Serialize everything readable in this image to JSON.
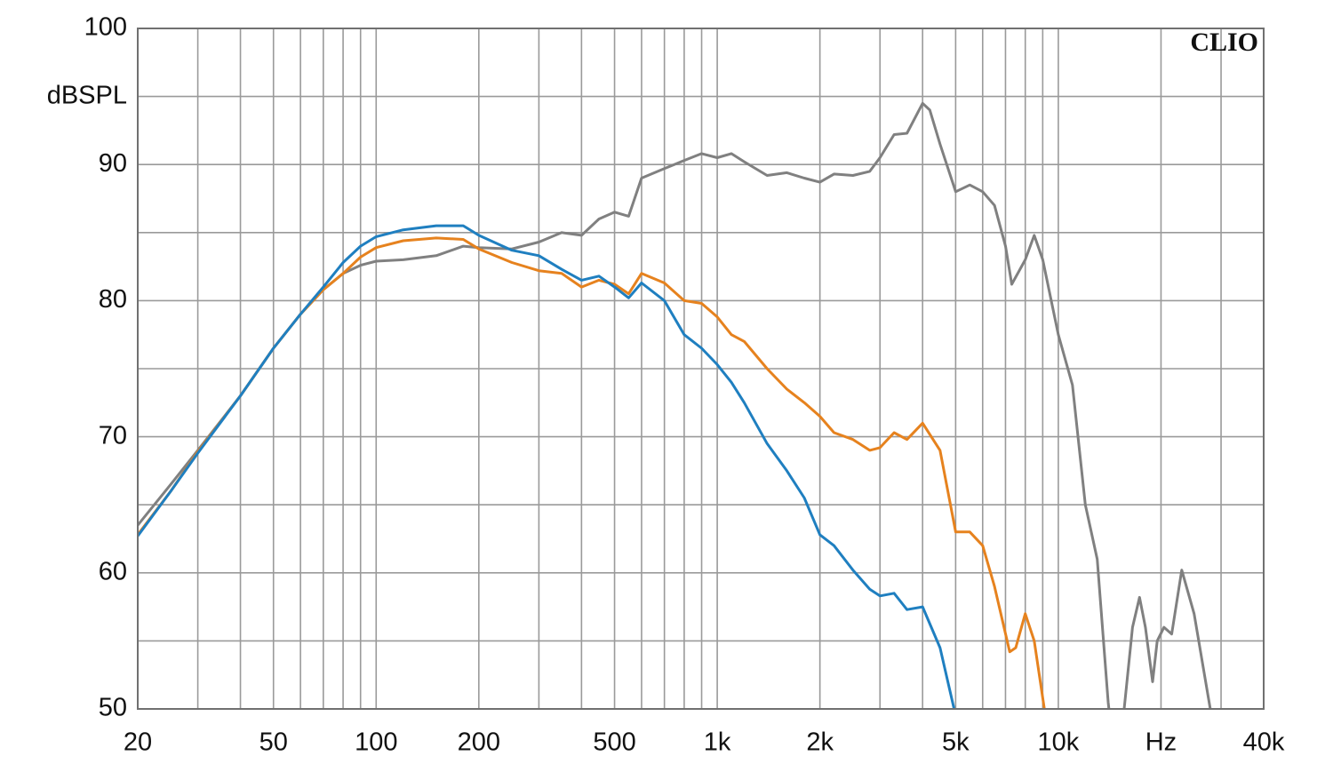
{
  "chart_data": {
    "type": "line",
    "xscale": "log",
    "grid": true,
    "xlabel_watermark": "CLIO",
    "ylabel": "dBSPL",
    "xlim": [
      20,
      40000
    ],
    "ylim": [
      50,
      100
    ],
    "xticks": [
      20,
      50,
      100,
      200,
      500,
      {
        "value": 1000,
        "label": "1k"
      },
      {
        "value": 2000,
        "label": "2k"
      },
      {
        "value": 5000,
        "label": "5k"
      },
      {
        "value": 10000,
        "label": "10k"
      },
      {
        "value": 20000,
        "label": "Hz"
      },
      {
        "value": 40000,
        "label": "40k"
      }
    ],
    "xminorticks": [
      30,
      40,
      60,
      70,
      80,
      90,
      300,
      400,
      600,
      700,
      800,
      900,
      3000,
      4000,
      6000,
      7000,
      8000,
      9000,
      30000
    ],
    "yticks": [
      50,
      60,
      70,
      80,
      90,
      100
    ],
    "yminorticks": [
      55,
      65,
      75,
      85,
      95
    ],
    "series": [
      {
        "color": "#808080",
        "x": [
          20,
          25,
          30,
          40,
          50,
          60,
          70,
          80,
          90,
          100,
          120,
          150,
          180,
          200,
          250,
          300,
          350,
          400,
          450,
          500,
          550,
          600,
          700,
          800,
          900,
          1000,
          1100,
          1200,
          1400,
          1600,
          1800,
          2000,
          2200,
          2500,
          2800,
          3000,
          3300,
          3600,
          4000,
          4200,
          4500,
          5000,
          5500,
          6000,
          6500,
          7000,
          7300,
          8000,
          8500,
          9000,
          10000,
          11000,
          12000,
          13000,
          14000,
          14500,
          15000,
          15600,
          16500,
          17300,
          18000,
          18900,
          19500,
          20400,
          21500,
          23000,
          25000,
          27900,
          30000
        ],
        "values": [
          63.5,
          66.5,
          69,
          73,
          76.5,
          79,
          80.8,
          82,
          82.6,
          82.9,
          83,
          83.3,
          84,
          83.9,
          83.8,
          84.3,
          85,
          84.8,
          86,
          86.5,
          86.2,
          89,
          89.7,
          90.3,
          90.8,
          90.5,
          90.8,
          90.2,
          89.2,
          89.4,
          89,
          88.7,
          89.3,
          89.2,
          89.5,
          90.5,
          92.2,
          92.3,
          94.5,
          94,
          91.5,
          88,
          88.5,
          88,
          87,
          84,
          81.2,
          83,
          84.8,
          83,
          77.5,
          73.8,
          65,
          61,
          50.5,
          47,
          47,
          50,
          56,
          58.2,
          56,
          52,
          55,
          56,
          55.5,
          60.2,
          57,
          50,
          48
        ]
      },
      {
        "color": "#e6821e",
        "x": [
          20,
          25,
          30,
          40,
          50,
          60,
          70,
          80,
          90,
          100,
          120,
          150,
          180,
          200,
          250,
          300,
          350,
          400,
          450,
          500,
          550,
          600,
          700,
          800,
          900,
          1000,
          1100,
          1200,
          1400,
          1600,
          1800,
          2000,
          2200,
          2500,
          2800,
          3000,
          3300,
          3600,
          4000,
          4500,
          5000,
          5500,
          6000,
          6500,
          7200,
          7500,
          8000,
          8500,
          9100,
          9400
        ],
        "values": [
          62.8,
          66,
          68.9,
          73,
          76.5,
          79,
          80.8,
          82,
          83.2,
          83.9,
          84.4,
          84.6,
          84.5,
          83.8,
          82.8,
          82.2,
          82,
          81,
          81.5,
          81.2,
          80.5,
          82,
          81.3,
          80,
          79.8,
          78.8,
          77.5,
          77,
          75,
          73.5,
          72.5,
          71.5,
          70.3,
          69.8,
          69,
          69.2,
          70.3,
          69.8,
          71,
          69,
          63,
          63,
          62,
          59,
          54.2,
          54.5,
          57,
          55,
          50,
          48
        ]
      },
      {
        "color": "#1f7fc0",
        "x": [
          20,
          25,
          30,
          40,
          50,
          60,
          70,
          80,
          90,
          100,
          120,
          150,
          180,
          200,
          250,
          300,
          350,
          400,
          450,
          500,
          550,
          600,
          700,
          800,
          900,
          1000,
          1100,
          1200,
          1400,
          1600,
          1800,
          2000,
          2200,
          2500,
          2800,
          3000,
          3300,
          3600,
          4000,
          4500,
          5000
        ],
        "values": [
          62.7,
          66,
          68.8,
          73,
          76.5,
          79,
          81,
          82.8,
          84,
          84.7,
          85.2,
          85.5,
          85.5,
          84.8,
          83.7,
          83.3,
          82.3,
          81.5,
          81.8,
          81,
          80.2,
          81.3,
          80,
          77.5,
          76.5,
          75.3,
          74,
          72.5,
          69.5,
          67.5,
          65.5,
          62.8,
          62,
          60.2,
          58.8,
          58.3,
          58.5,
          57.3,
          57.5,
          54.5,
          49.5
        ]
      }
    ]
  }
}
